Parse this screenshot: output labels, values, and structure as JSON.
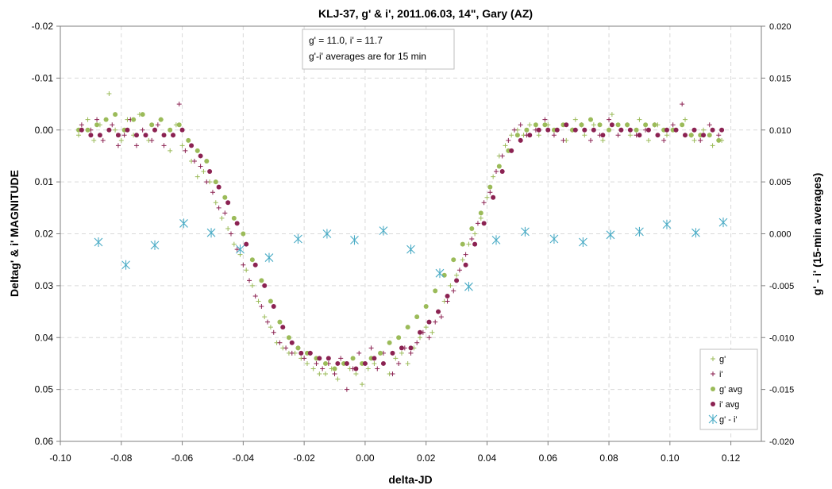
{
  "chart_data": {
    "type": "scatter",
    "title": "KLJ-37, g' & i', 2011.06.03, 14\", Gary (AZ)",
    "xlabel": "delta-JD",
    "ylabel": "Deltag' & i' MAGNITUDE",
    "y2label": "g' - i' (15-min averages)",
    "xlim": [
      -0.1,
      0.13
    ],
    "x_ticks": [
      "-0.10",
      "-0.08",
      "-0.06",
      "-0.04",
      "-0.02",
      "0.00",
      "0.02",
      "0.04",
      "0.06",
      "0.08",
      "0.10",
      "0.12"
    ],
    "ylim": [
      -0.02,
      0.06
    ],
    "y_inverted": true,
    "y_ticks": [
      "-0.02",
      "-0.01",
      "0.00",
      "0.01",
      "0.02",
      "0.03",
      "0.04",
      "0.05",
      "0.06"
    ],
    "y2lim": [
      -0.02,
      0.02
    ],
    "y2_ticks": [
      "0.020",
      "0.015",
      "0.010",
      "0.005",
      "0.000",
      "-0.005",
      "-0.010",
      "-0.015",
      "-0.020"
    ],
    "grid": true,
    "annotation": [
      "g' =  11.0, i' = 11.7",
      "g'-i' averages are for 15 min"
    ],
    "legend_position": "bottom-right",
    "colors": {
      "g": "#9BBB59",
      "i": "#8B2252",
      "gi": "#4BACC6",
      "grid": "#D9D9D9"
    },
    "series": [
      {
        "name": "g'",
        "marker": "plus",
        "axis": "left",
        "x": [
          -0.094,
          -0.091,
          -0.089,
          -0.087,
          -0.084,
          -0.082,
          -0.08,
          -0.078,
          -0.076,
          -0.074,
          -0.071,
          -0.069,
          -0.067,
          -0.064,
          -0.062,
          -0.06,
          -0.057,
          -0.055,
          -0.053,
          -0.051,
          -0.049,
          -0.047,
          -0.045,
          -0.043,
          -0.041,
          -0.039,
          -0.037,
          -0.035,
          -0.033,
          -0.031,
          -0.029,
          -0.027,
          -0.025,
          -0.023,
          -0.021,
          -0.019,
          -0.017,
          -0.015,
          -0.013,
          -0.011,
          -0.009,
          -0.007,
          -0.005,
          -0.003,
          -0.001,
          0.001,
          0.003,
          0.005,
          0.008,
          0.01,
          0.012,
          0.014,
          0.016,
          0.018,
          0.02,
          0.022,
          0.024,
          0.026,
          0.028,
          0.03,
          0.032,
          0.034,
          0.036,
          0.038,
          0.04,
          0.042,
          0.044,
          0.046,
          0.048,
          0.05,
          0.052,
          0.054,
          0.057,
          0.06,
          0.063,
          0.066,
          0.069,
          0.072,
          0.075,
          0.078,
          0.081,
          0.084,
          0.087,
          0.09,
          0.093,
          0.096,
          0.099,
          0.102,
          0.105,
          0.108,
          0.111,
          0.114,
          0.117
        ],
        "values": [
          0.001,
          -0.002,
          0.002,
          -0.001,
          -0.007,
          0.0,
          0.002,
          -0.002,
          0.001,
          -0.003,
          0.002,
          0.0,
          -0.002,
          0.004,
          -0.001,
          0.003,
          0.006,
          0.009,
          0.008,
          0.01,
          0.014,
          0.017,
          0.019,
          0.022,
          0.024,
          0.027,
          0.03,
          0.033,
          0.036,
          0.038,
          0.041,
          0.042,
          0.043,
          0.043,
          0.044,
          0.045,
          0.046,
          0.047,
          0.047,
          0.046,
          0.048,
          0.045,
          0.046,
          0.047,
          0.049,
          0.046,
          0.045,
          0.043,
          0.047,
          0.044,
          0.043,
          0.045,
          0.042,
          0.04,
          0.038,
          0.039,
          0.035,
          0.033,
          0.03,
          0.028,
          0.025,
          0.022,
          0.02,
          0.017,
          0.013,
          0.009,
          0.005,
          0.003,
          0.001,
          0.0,
          0.001,
          -0.001,
          0.001,
          -0.001,
          0.0,
          0.002,
          -0.002,
          0.001,
          -0.001,
          0.002,
          -0.003,
          0.0,
          0.001,
          -0.002,
          0.002,
          -0.001,
          0.001,
          0.0,
          -0.002,
          0.002,
          0.0,
          0.003,
          0.002
        ]
      },
      {
        "name": "i'",
        "marker": "plus",
        "axis": "left",
        "x": [
          -0.093,
          -0.09,
          -0.088,
          -0.086,
          -0.083,
          -0.081,
          -0.079,
          -0.077,
          -0.075,
          -0.073,
          -0.07,
          -0.068,
          -0.066,
          -0.063,
          -0.061,
          -0.059,
          -0.056,
          -0.054,
          -0.052,
          -0.05,
          -0.048,
          -0.046,
          -0.044,
          -0.042,
          -0.04,
          -0.038,
          -0.036,
          -0.034,
          -0.032,
          -0.03,
          -0.028,
          -0.026,
          -0.024,
          -0.022,
          -0.02,
          -0.018,
          -0.016,
          -0.014,
          -0.012,
          -0.01,
          -0.008,
          -0.006,
          -0.004,
          -0.002,
          0.0,
          0.002,
          0.004,
          0.006,
          0.009,
          0.011,
          0.013,
          0.015,
          0.017,
          0.019,
          0.021,
          0.023,
          0.025,
          0.027,
          0.029,
          0.031,
          0.033,
          0.035,
          0.037,
          0.039,
          0.041,
          0.043,
          0.045,
          0.047,
          0.049,
          0.051,
          0.053,
          0.056,
          0.059,
          0.062,
          0.065,
          0.068,
          0.071,
          0.074,
          0.077,
          0.08,
          0.083,
          0.086,
          0.089,
          0.092,
          0.095,
          0.098,
          0.101,
          0.104,
          0.107,
          0.11,
          0.113,
          0.116
        ],
        "values": [
          -0.001,
          0.0,
          -0.002,
          0.002,
          -0.001,
          0.003,
          0.001,
          -0.002,
          0.003,
          0.0,
          0.002,
          -0.001,
          0.003,
          0.001,
          -0.005,
          0.004,
          0.006,
          0.007,
          0.01,
          0.012,
          0.015,
          0.016,
          0.02,
          0.023,
          0.026,
          0.029,
          0.032,
          0.034,
          0.037,
          0.039,
          0.041,
          0.042,
          0.043,
          0.042,
          0.044,
          0.043,
          0.045,
          0.046,
          0.045,
          0.047,
          0.044,
          0.05,
          0.046,
          0.043,
          0.045,
          0.042,
          0.046,
          0.043,
          0.047,
          0.045,
          0.042,
          0.043,
          0.041,
          0.039,
          0.04,
          0.037,
          0.036,
          0.033,
          0.031,
          0.027,
          0.024,
          0.021,
          0.018,
          0.014,
          0.012,
          0.008,
          0.005,
          0.002,
          0.0,
          -0.001,
          0.001,
          0.0,
          -0.002,
          0.001,
          0.002,
          0.0,
          -0.001,
          0.002,
          0.001,
          -0.002,
          0.001,
          -0.001,
          0.001,
          0.0,
          -0.001,
          0.002,
          -0.001,
          -0.005,
          0.001,
          0.002,
          -0.001,
          0.001
        ]
      },
      {
        "name": "g' avg",
        "marker": "circle",
        "axis": "left",
        "x": [
          -0.094,
          -0.091,
          -0.088,
          -0.085,
          -0.082,
          -0.079,
          -0.076,
          -0.073,
          -0.07,
          -0.067,
          -0.064,
          -0.061,
          -0.058,
          -0.055,
          -0.052,
          -0.049,
          -0.046,
          -0.043,
          -0.04,
          -0.037,
          -0.034,
          -0.031,
          -0.028,
          -0.025,
          -0.022,
          -0.019,
          -0.016,
          -0.013,
          -0.01,
          -0.007,
          -0.004,
          -0.001,
          0.002,
          0.005,
          0.008,
          0.011,
          0.014,
          0.017,
          0.02,
          0.023,
          0.026,
          0.029,
          0.032,
          0.035,
          0.038,
          0.041,
          0.044,
          0.047,
          0.05,
          0.053,
          0.056,
          0.059,
          0.062,
          0.065,
          0.068,
          0.071,
          0.074,
          0.077,
          0.08,
          0.083,
          0.086,
          0.089,
          0.092,
          0.095,
          0.098,
          0.101,
          0.104,
          0.107,
          0.11,
          0.113,
          0.116
        ],
        "values": [
          0.0,
          0.0,
          -0.001,
          -0.002,
          -0.003,
          0.0,
          -0.002,
          -0.003,
          -0.001,
          -0.002,
          0.0,
          -0.001,
          0.002,
          0.004,
          0.006,
          0.01,
          0.013,
          0.017,
          0.02,
          0.025,
          0.029,
          0.033,
          0.037,
          0.04,
          0.042,
          0.043,
          0.044,
          0.045,
          0.046,
          0.045,
          0.044,
          0.045,
          0.044,
          0.043,
          0.041,
          0.04,
          0.038,
          0.036,
          0.034,
          0.031,
          0.028,
          0.025,
          0.022,
          0.019,
          0.016,
          0.011,
          0.007,
          0.004,
          0.001,
          0.0,
          -0.001,
          -0.001,
          0.0,
          -0.001,
          0.0,
          -0.001,
          -0.002,
          -0.001,
          0.0,
          -0.001,
          -0.001,
          0.0,
          -0.001,
          -0.001,
          0.0,
          0.0,
          -0.001,
          0.001,
          0.001,
          0.001,
          0.002
        ]
      },
      {
        "name": "i' avg",
        "marker": "circle",
        "axis": "left",
        "x": [
          -0.093,
          -0.09,
          -0.087,
          -0.084,
          -0.081,
          -0.078,
          -0.075,
          -0.072,
          -0.069,
          -0.066,
          -0.063,
          -0.06,
          -0.057,
          -0.054,
          -0.051,
          -0.048,
          -0.045,
          -0.042,
          -0.039,
          -0.036,
          -0.033,
          -0.03,
          -0.027,
          -0.024,
          -0.021,
          -0.018,
          -0.015,
          -0.012,
          -0.009,
          -0.006,
          -0.003,
          0.0,
          0.003,
          0.006,
          0.009,
          0.012,
          0.015,
          0.018,
          0.021,
          0.024,
          0.027,
          0.03,
          0.033,
          0.036,
          0.039,
          0.042,
          0.045,
          0.048,
          0.051,
          0.054,
          0.057,
          0.06,
          0.063,
          0.066,
          0.069,
          0.072,
          0.075,
          0.078,
          0.081,
          0.084,
          0.087,
          0.09,
          0.093,
          0.096,
          0.099,
          0.102,
          0.105,
          0.108,
          0.111,
          0.114,
          0.117
        ],
        "values": [
          0.0,
          0.001,
          0.001,
          0.0,
          0.001,
          0.0,
          0.001,
          0.001,
          0.0,
          0.001,
          0.001,
          0.0,
          0.003,
          0.005,
          0.008,
          0.011,
          0.014,
          0.018,
          0.022,
          0.026,
          0.03,
          0.034,
          0.038,
          0.041,
          0.043,
          0.043,
          0.044,
          0.044,
          0.045,
          0.045,
          0.046,
          0.045,
          0.044,
          0.045,
          0.043,
          0.042,
          0.042,
          0.039,
          0.037,
          0.035,
          0.032,
          0.029,
          0.026,
          0.022,
          0.018,
          0.013,
          0.008,
          0.004,
          0.002,
          0.001,
          0.0,
          0.0,
          0.0,
          -0.001,
          0.0,
          0.0,
          0.0,
          0.001,
          -0.001,
          0.0,
          0.0,
          0.001,
          0.0,
          0.001,
          0.0,
          0.0,
          0.001,
          0.0,
          0.001,
          0.0,
          0.0
        ]
      },
      {
        "name": "g' - i'",
        "marker": "star",
        "axis": "right",
        "x": [
          -0.0875,
          -0.0785,
          -0.069,
          -0.0595,
          -0.0505,
          -0.041,
          -0.0315,
          -0.022,
          -0.0125,
          -0.0035,
          0.006,
          0.015,
          0.0245,
          0.034,
          0.043,
          0.0525,
          0.062,
          0.0715,
          0.0805,
          0.09,
          0.099,
          0.1085,
          0.1175
        ],
        "values": [
          -0.0008,
          -0.003,
          -0.0011,
          0.001,
          0.0001,
          -0.0015,
          -0.0023,
          -0.0005,
          0.0,
          -0.0006,
          0.0003,
          -0.0015,
          -0.0038,
          -0.0051,
          -0.0006,
          0.0002,
          -0.0005,
          -0.0008,
          -0.0001,
          0.0002,
          0.0009,
          0.0001,
          0.0011
        ]
      }
    ]
  }
}
